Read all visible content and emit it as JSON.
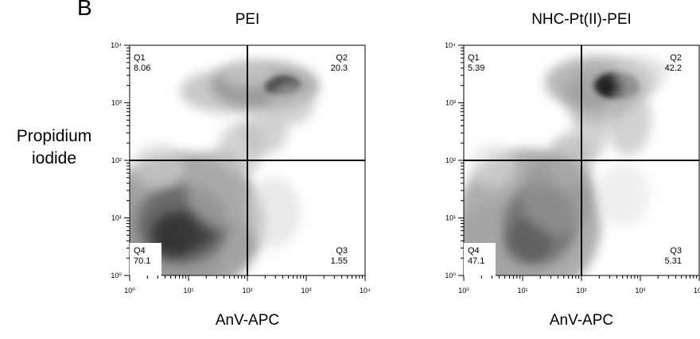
{
  "figure": {
    "panel_letter": "B",
    "ylabel_line1": "Propidium",
    "ylabel_line2": "iodide"
  },
  "chart_data": [
    {
      "type": "heatmap",
      "title": "PEI",
      "xlabel": "AnV-APC",
      "ylabel": "Propidium iodide",
      "x_scale": "log",
      "y_scale": "log",
      "xlim": [
        1,
        10000
      ],
      "ylim": [
        1,
        10000
      ],
      "xticks": [
        "10^0",
        "10^1",
        "10^2",
        "10^3",
        "10^4"
      ],
      "yticks": [
        "10^0",
        "10^1",
        "10^2",
        "10^3",
        "10^4"
      ],
      "quadrant_gate": {
        "x": 100,
        "y": 100
      },
      "quadrants": [
        {
          "name": "Q1",
          "value": "8.06",
          "position": "top-left"
        },
        {
          "name": "Q2",
          "value": "20.3",
          "position": "top-right"
        },
        {
          "name": "Q3",
          "value": "1.55",
          "position": "bottom-right"
        },
        {
          "name": "Q4",
          "value": "70.1",
          "position": "bottom-left"
        }
      ]
    },
    {
      "type": "heatmap",
      "title": "NHC-Pt(II)-PEI",
      "xlabel": "AnV-APC",
      "ylabel": "Propidium iodide",
      "x_scale": "log",
      "y_scale": "log",
      "xlim": [
        1,
        10000
      ],
      "ylim": [
        1,
        10000
      ],
      "xticks": [
        "10^0",
        "10^1",
        "10^2",
        "10^3",
        "10^4"
      ],
      "yticks": [
        "10^0",
        "10^1",
        "10^2",
        "10^3",
        "10^4"
      ],
      "quadrant_gate": {
        "x": 100,
        "y": 100
      },
      "quadrants": [
        {
          "name": "Q1",
          "value": "5.39",
          "position": "top-left"
        },
        {
          "name": "Q2",
          "value": "42.2",
          "position": "top-right"
        },
        {
          "name": "Q3",
          "value": "5.31",
          "position": "bottom-right"
        },
        {
          "name": "Q4",
          "value": "47.1",
          "position": "bottom-left"
        }
      ]
    }
  ]
}
